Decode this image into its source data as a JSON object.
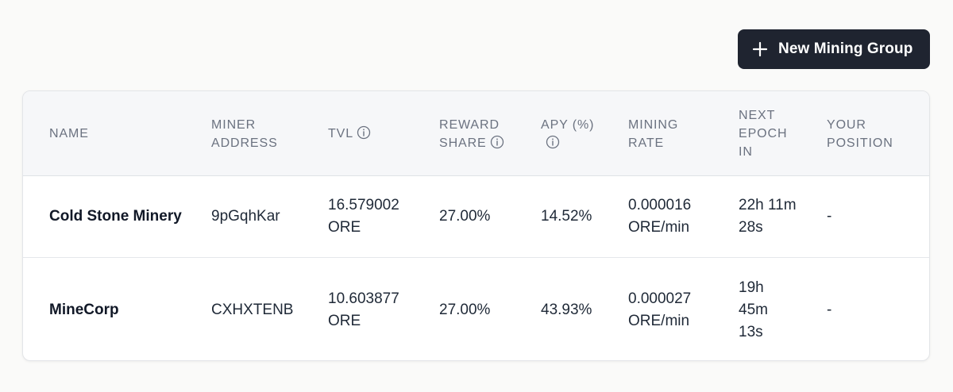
{
  "toolbar": {
    "new_group_label": "New Mining Group",
    "new_group_icon": "plus-icon"
  },
  "table": {
    "headers": {
      "name": "NAME",
      "address_1": "MINER",
      "address_2": "ADDRESS",
      "tvl": "TVL",
      "share_1": "REWARD",
      "share_2": "SHARE",
      "apy_1": "APY (%)",
      "rate_1": "MINING",
      "rate_2": "RATE",
      "epoch_1": "NEXT",
      "epoch_2": "EPOCH",
      "epoch_3": "IN",
      "position_1": "YOUR",
      "position_2": "POSITION"
    },
    "rows": [
      {
        "name": "Cold Stone Minery",
        "address": "9pGqhKar",
        "tvl_value": "16.579002",
        "tvl_unit": "ORE",
        "reward_share": "27.00%",
        "apy": "14.52%",
        "rate_value": "0.000016",
        "rate_unit": "ORE/min",
        "epoch_1": "22h 11m",
        "epoch_2": "28s",
        "position": "-"
      },
      {
        "name": "MineCorp",
        "address": "CXHXTENB",
        "tvl_value": "10.603877",
        "tvl_unit": "ORE",
        "reward_share": "27.00%",
        "apy": "43.93%",
        "rate_value": "0.000027",
        "rate_unit": "ORE/min",
        "epoch_1": "19h",
        "epoch_2": "45m",
        "epoch_3": "13s",
        "position": "-"
      }
    ]
  },
  "colors": {
    "button_bg": "#1f2430",
    "header_bg": "#f6f7f9",
    "header_text": "#6b7280",
    "page_bg": "#fafaf9"
  }
}
